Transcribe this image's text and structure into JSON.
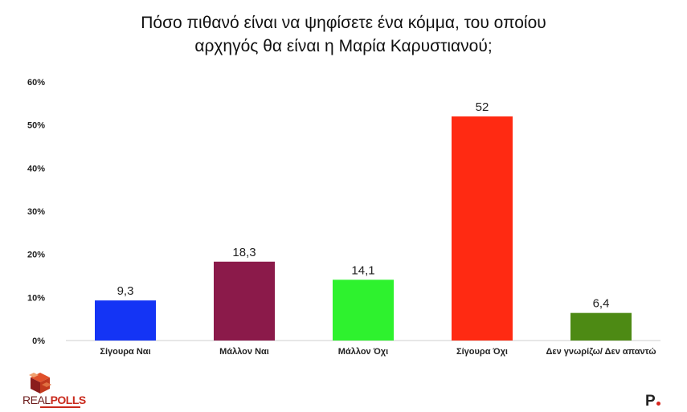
{
  "title_lines": [
    "Πόσο πιθανό είναι να ψηφίσετε ένα κόμμα, του οποίου",
    "αρχηγός θα είναι η Μαρία Καρυστιανού;"
  ],
  "chart_data": {
    "type": "bar",
    "categories": [
      "Σίγουρα Ναι",
      "Μάλλον Ναι",
      "Μάλλον Όχι",
      "Σίγουρα Όχι",
      "Δεν γνωρίζω/ Δεν απαντώ"
    ],
    "values": [
      9.3,
      18.3,
      14.1,
      52,
      6.4
    ],
    "value_labels": [
      "9,3",
      "18,3",
      "14,1",
      "52",
      "6,4"
    ],
    "colors": [
      "#1434f5",
      "#8b1a4a",
      "#2ef22e",
      "#ff2a12",
      "#4d8a14"
    ],
    "ylim": [
      0,
      60
    ],
    "yticks": [
      0,
      10,
      20,
      30,
      40,
      50,
      60
    ],
    "ytick_labels": [
      "0%",
      "10%",
      "20%",
      "30%",
      "40%",
      "50%",
      "60%"
    ],
    "grid": false
  },
  "logo": {
    "real": "REAL",
    "polls": "POLLS"
  },
  "brand": "P"
}
